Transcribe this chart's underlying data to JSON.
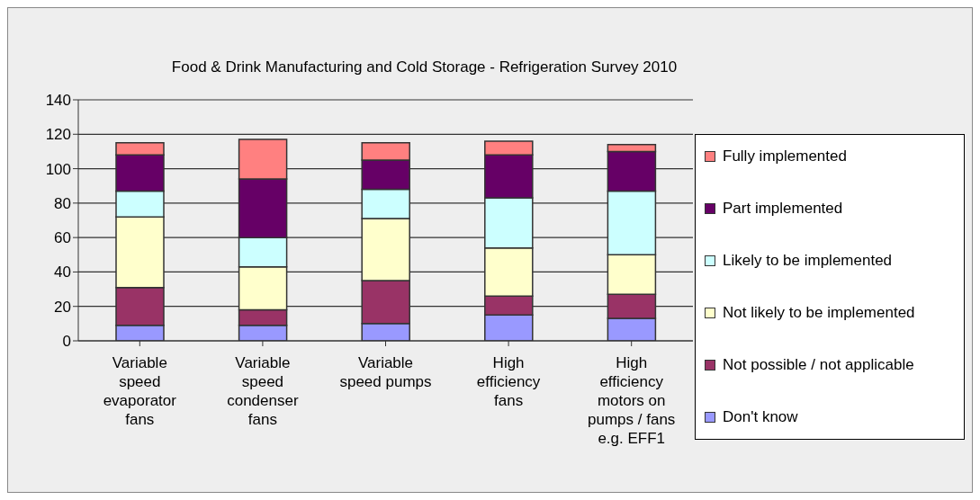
{
  "chart_data": {
    "type": "bar",
    "title": "Food & Drink Manufacturing and Cold Storage - Refrigeration Survey 2010",
    "categories": [
      "Variable speed evaporator fans",
      "Variable speed condenser fans",
      "Variable speed pumps",
      "High efficiency fans",
      "High efficiency motors on pumps / fans e.g. EFF1"
    ],
    "stacked": true,
    "series": [
      {
        "name": "Don't know",
        "color": "#9999ff",
        "values": [
          9,
          9,
          10,
          15,
          13
        ]
      },
      {
        "name": "Not possible / not applicable",
        "color": "#993366",
        "values": [
          22,
          9,
          25,
          11,
          14
        ]
      },
      {
        "name": "Not likely to be implemented",
        "color": "#ffffcc",
        "values": [
          41,
          25,
          36,
          28,
          23
        ]
      },
      {
        "name": "Likely to be implemented",
        "color": "#ccffff",
        "values": [
          15,
          17,
          17,
          29,
          37
        ]
      },
      {
        "name": "Part implemented",
        "color": "#660066",
        "values": [
          21,
          34,
          17,
          25,
          23
        ]
      },
      {
        "name": "Fully implemented",
        "color": "#ff8080",
        "values": [
          7,
          23,
          10,
          8,
          4
        ]
      }
    ],
    "ylim": [
      0,
      140
    ],
    "yticks": [
      0,
      20,
      40,
      60,
      80,
      100,
      120,
      140
    ],
    "grid": "y",
    "legend": "right"
  }
}
